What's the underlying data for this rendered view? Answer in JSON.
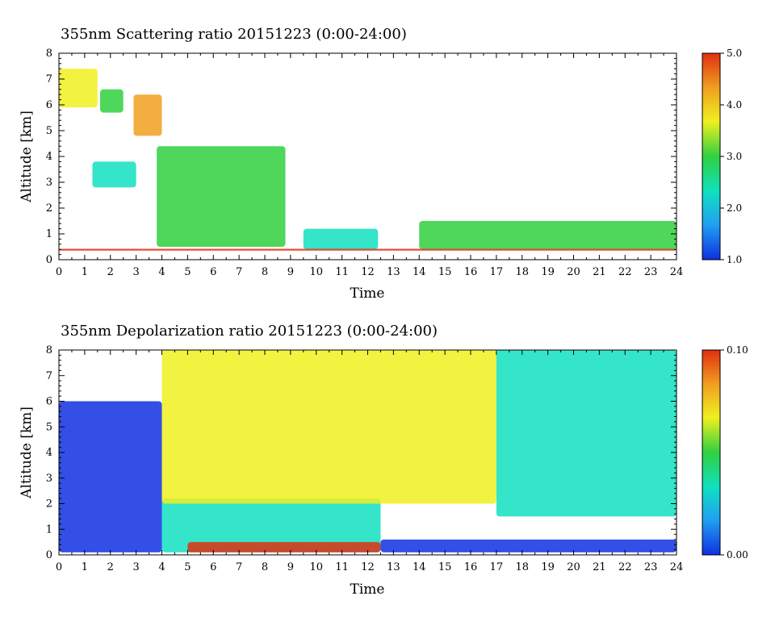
{
  "chart_data": [
    {
      "type": "heatmap",
      "title": "355nm Scattering ratio  20151223 (0:00-24:00)",
      "xlabel": "Time",
      "ylabel": "Altitude [km]",
      "xlim": [
        0,
        24
      ],
      "ylim": [
        0,
        8
      ],
      "x_ticks": [
        "0",
        "1",
        "2",
        "3",
        "4",
        "5",
        "6",
        "7",
        "8",
        "9",
        "10",
        "11",
        "12",
        "13",
        "14",
        "15",
        "16",
        "17",
        "18",
        "19",
        "20",
        "21",
        "22",
        "23",
        "24"
      ],
      "y_ticks": [
        "0",
        "1",
        "2",
        "3",
        "4",
        "5",
        "6",
        "7",
        "8"
      ],
      "colorbar": {
        "min": 1.0,
        "max": 5.0,
        "ticks": [
          "1.0",
          "2.0",
          "3.0",
          "4.0",
          "5.0"
        ]
      },
      "colormap": [
        "#1030e0",
        "#20a0f0",
        "#10e0c0",
        "#30d040",
        "#f0f020",
        "#f0a020",
        "#e03010"
      ],
      "features": [
        {
          "x0": 0.0,
          "x1": 1.5,
          "y0": 5.9,
          "y1": 7.4,
          "level": 3.5
        },
        {
          "x0": 1.6,
          "x1": 2.5,
          "y0": 5.7,
          "y1": 6.6,
          "level": 3.0
        },
        {
          "x0": 2.9,
          "x1": 4.0,
          "y0": 4.8,
          "y1": 6.4,
          "level": 4.2
        },
        {
          "x0": 1.3,
          "x1": 3.0,
          "y0": 2.8,
          "y1": 3.8,
          "level": 2.5
        },
        {
          "x0": 3.8,
          "x1": 8.8,
          "y0": 0.5,
          "y1": 4.4,
          "level": 3.0
        },
        {
          "x0": 9.5,
          "x1": 12.4,
          "y0": 0.4,
          "y1": 1.2,
          "level": 2.2
        },
        {
          "x0": 14.0,
          "x1": 24.0,
          "y0": 0.4,
          "y1": 1.5,
          "level": 2.8
        },
        {
          "x0": 0.0,
          "x1": 24.0,
          "y0": 0.35,
          "y1": 0.42,
          "level": 4.5
        }
      ]
    },
    {
      "type": "heatmap",
      "title": "355nm Depolarization ratio  20151223 (0:00-24:00)",
      "xlabel": "Time",
      "ylabel": "Altitude [km]",
      "xlim": [
        0,
        24
      ],
      "ylim": [
        0,
        8
      ],
      "x_ticks": [
        "0",
        "1",
        "2",
        "3",
        "4",
        "5",
        "6",
        "7",
        "8",
        "9",
        "10",
        "11",
        "12",
        "13",
        "14",
        "15",
        "16",
        "17",
        "18",
        "19",
        "20",
        "21",
        "22",
        "23",
        "24"
      ],
      "y_ticks": [
        "0",
        "1",
        "2",
        "3",
        "4",
        "5",
        "6",
        "7",
        "8"
      ],
      "colorbar": {
        "min": 0.0,
        "max": 0.1,
        "ticks": [
          "0.00",
          "0.10"
        ]
      },
      "colormap": [
        "#1030e0",
        "#20a0f0",
        "#10e0c0",
        "#30d040",
        "#f0f020",
        "#f0a020",
        "#e03010"
      ],
      "features": [
        {
          "x0": 0.0,
          "x1": 4.0,
          "y0": 0.1,
          "y1": 6.0,
          "level": 0.01
        },
        {
          "x0": 4.0,
          "x1": 12.5,
          "y0": 0.1,
          "y1": 2.2,
          "level": 0.03
        },
        {
          "x0": 5.0,
          "x1": 12.5,
          "y0": 0.1,
          "y1": 0.5,
          "level": 0.09
        },
        {
          "x0": 12.5,
          "x1": 24.0,
          "y0": 0.1,
          "y1": 0.6,
          "level": 0.01
        },
        {
          "x0": 4.0,
          "x1": 17.0,
          "y0": 2.0,
          "y1": 8.0,
          "level": 0.07
        },
        {
          "x0": 17.0,
          "x1": 24.0,
          "y0": 1.5,
          "y1": 8.0,
          "level": 0.03
        }
      ]
    }
  ]
}
